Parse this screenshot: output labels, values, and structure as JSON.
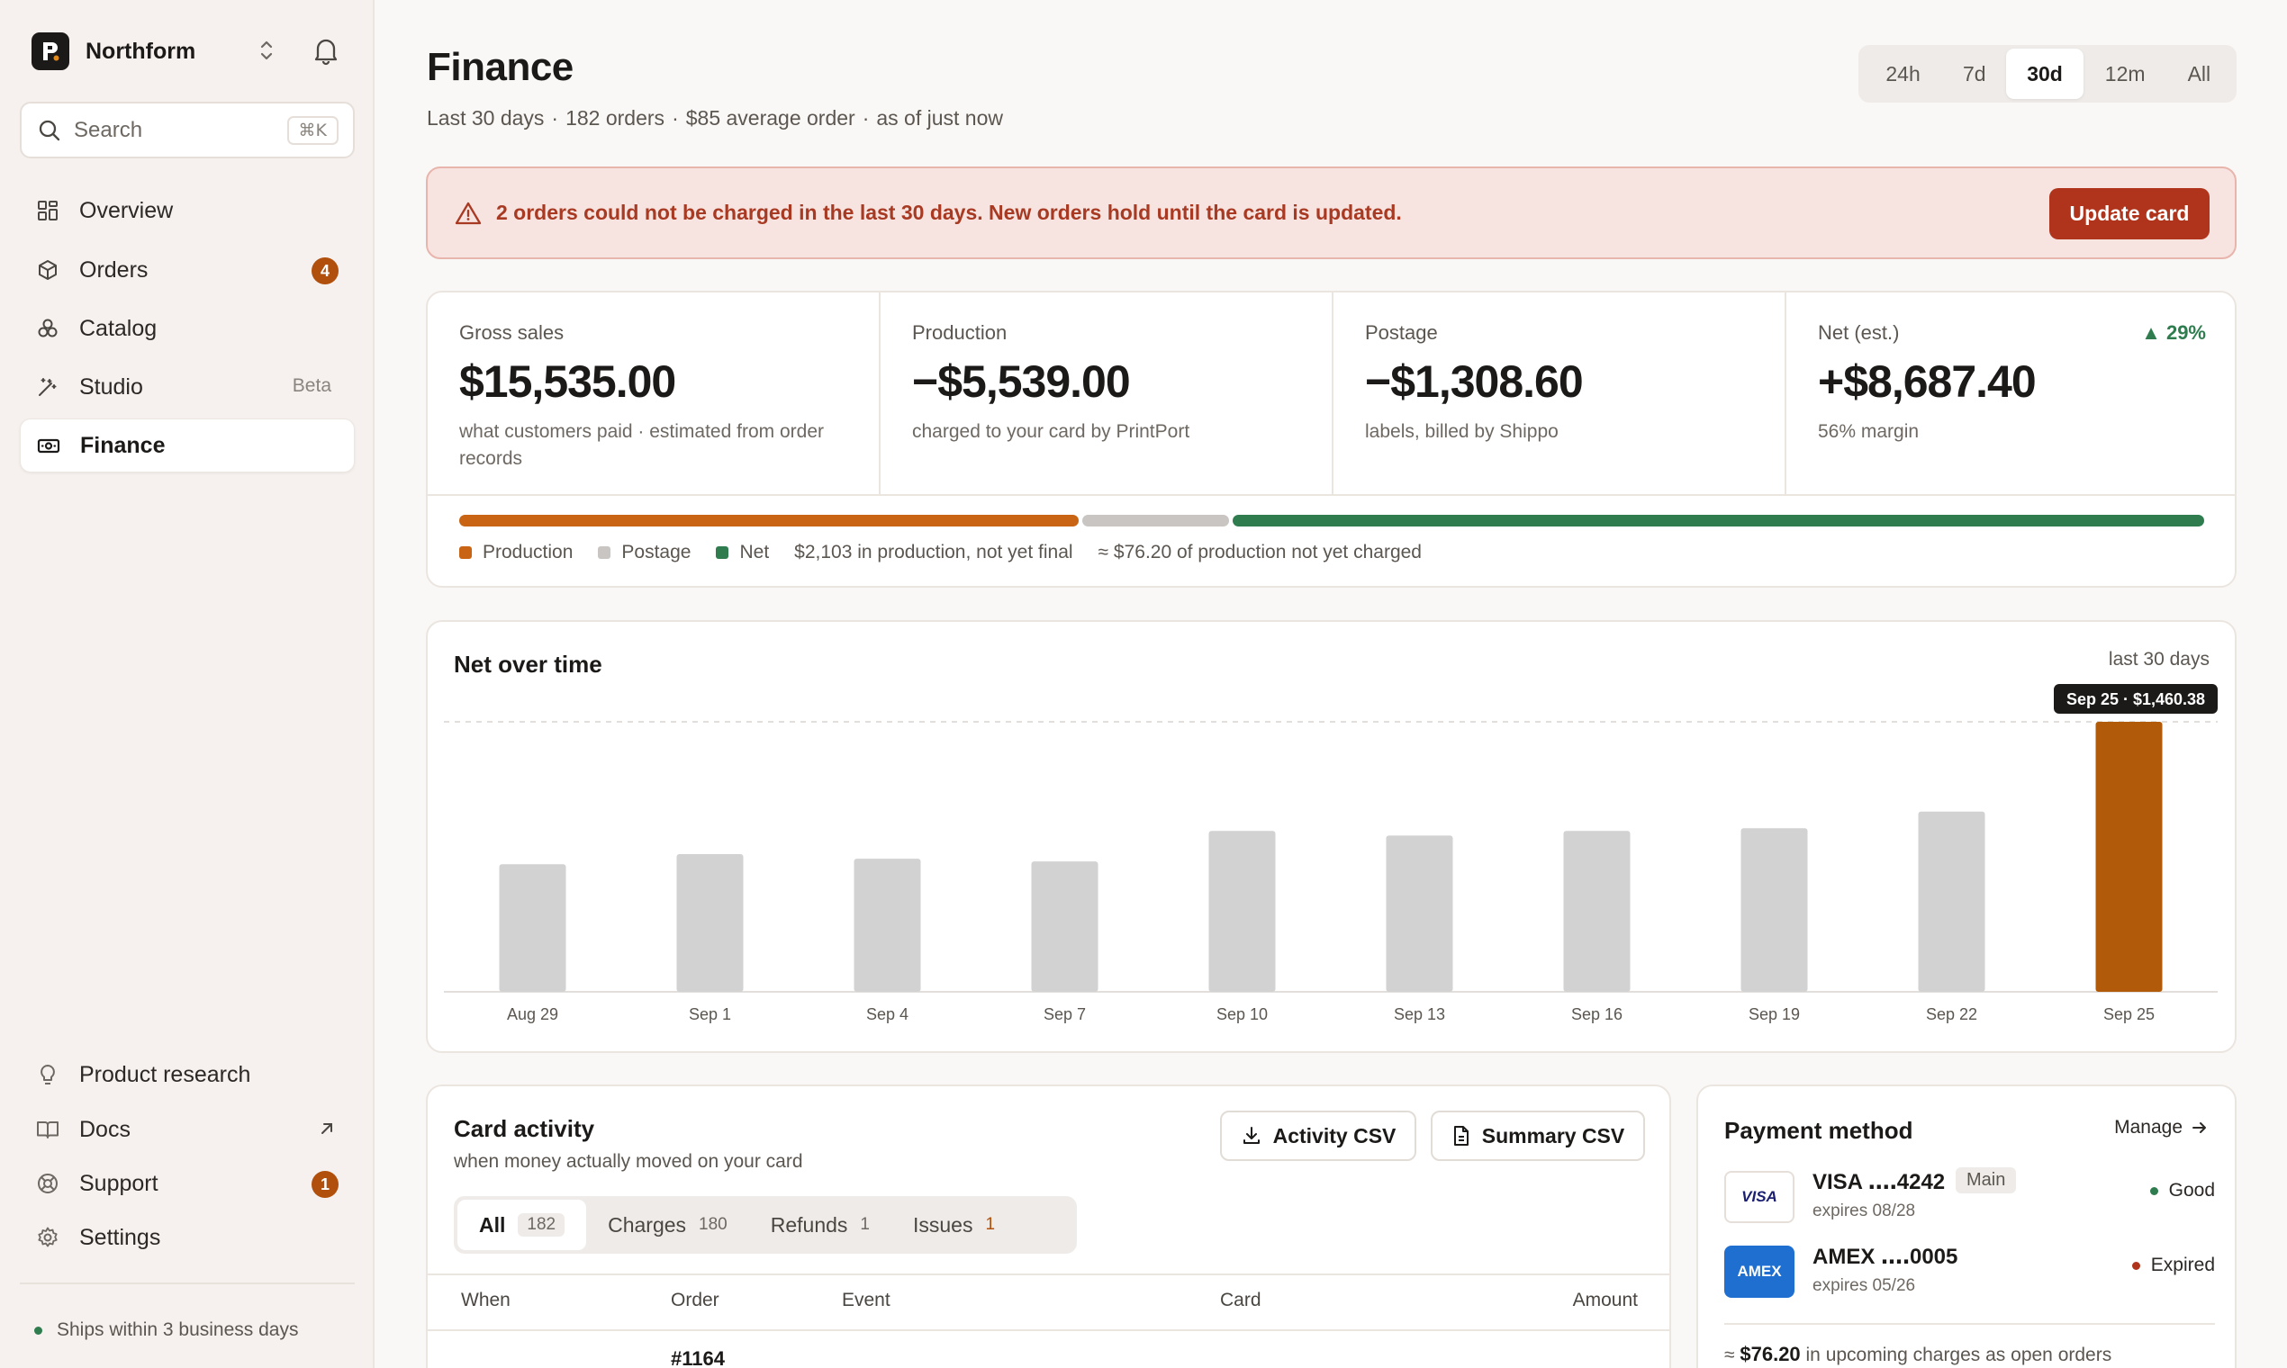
{
  "sidebar": {
    "brand": "Northform",
    "search_label": "Search",
    "search_shortcut": "⌘K",
    "nav": [
      {
        "label": "Overview",
        "icon": "grid-icon"
      },
      {
        "label": "Orders",
        "icon": "box-icon",
        "badge": "4"
      },
      {
        "label": "Catalog",
        "icon": "stack-icon"
      },
      {
        "label": "Studio",
        "icon": "wand-icon",
        "tag": "Beta"
      },
      {
        "label": "Finance",
        "icon": "banknote-icon",
        "active": true
      }
    ],
    "bottom_nav": [
      {
        "label": "Product research",
        "icon": "lightbulb-icon"
      },
      {
        "label": "Docs",
        "icon": "book-icon"
      },
      {
        "label": "Support",
        "icon": "lifebuoy-icon",
        "badge": "1"
      },
      {
        "label": "Settings",
        "icon": "gear-icon"
      }
    ],
    "ship_status": "Ships within 3 business days"
  },
  "header": {
    "title": "Finance",
    "subtitle": [
      "Last 30 days",
      "182 orders",
      "$85 average order",
      "as of just now"
    ],
    "ranges": [
      "24h",
      "7d",
      "30d",
      "12m",
      "All"
    ],
    "active_range": "30d"
  },
  "alert": {
    "text": "2 orders could not be charged in the last 30 days. New orders hold until the card is updated.",
    "button": "Update card"
  },
  "stats": [
    {
      "label": "Gross sales",
      "value": "$15,535.00",
      "note": "what customers paid · estimated from order records"
    },
    {
      "label": "Production",
      "value": "−$5,539.00",
      "note": "charged to your card by PrintPort"
    },
    {
      "label": "Postage",
      "value": "−$1,308.60",
      "note": "labels, billed by Shippo"
    },
    {
      "label": "Net (est.)",
      "value": "+$8,687.40",
      "note": "56% margin",
      "change": "29%"
    }
  ],
  "split": {
    "segments": [
      {
        "name": "Production",
        "share": 0.3566,
        "color": "#c86414"
      },
      {
        "name": "Postage",
        "share": 0.0842,
        "color": "#c8c5c2"
      },
      {
        "name": "Net",
        "share": 0.5592,
        "color": "#2f7d4f"
      }
    ],
    "notes": [
      "$2,103 in production, not yet final",
      "≈ $76.20 of production not yet charged"
    ]
  },
  "chart_data": {
    "type": "bar",
    "title": "Net over time",
    "range_label": "last 30 days",
    "categories": [
      "Aug 29",
      "Sep 1",
      "Sep 4",
      "Sep 7",
      "Sep 10",
      "Sep 13",
      "Sep 16",
      "Sep 19",
      "Sep 22",
      "Sep 25"
    ],
    "values": [
      690,
      745,
      720,
      705,
      870,
      845,
      870,
      885,
      975,
      1460.38
    ],
    "highlight_index": 9,
    "highlight_label": "Sep 25 · $1,460.38",
    "ylim": [
      0,
      1460.38
    ],
    "colors": {
      "bar": "#d2d2d2",
      "highlight": "#b05a0a"
    }
  },
  "activity": {
    "title": "Card activity",
    "subtitle": "when money actually moved on your card",
    "csv_buttons": [
      "Activity CSV",
      "Summary CSV"
    ],
    "tabs": [
      {
        "label": "All",
        "count": "182",
        "active": true
      },
      {
        "label": "Charges",
        "count": "180"
      },
      {
        "label": "Refunds",
        "count": "1"
      },
      {
        "label": "Issues",
        "count": "1",
        "warn": true
      }
    ],
    "columns": [
      "When",
      "Order",
      "Event",
      "Card",
      "Amount"
    ],
    "first_row_order": "#1164"
  },
  "payment": {
    "title": "Payment method",
    "manage": "Manage",
    "methods": [
      {
        "brand": "VISA",
        "name": "VISA ․․․․4242",
        "expires": "expires 08/28",
        "tag": "Main",
        "status": "Good",
        "status_color": "#2f7d4f"
      },
      {
        "brand": "AMEX",
        "name": "AMEX ․․․․0005",
        "expires": "expires 05/26",
        "status": "Expired",
        "status_color": "#b0341c"
      }
    ],
    "footer_prefix": "≈",
    "footer_amount": "$76.20",
    "footer_text": "in upcoming charges as open orders"
  }
}
